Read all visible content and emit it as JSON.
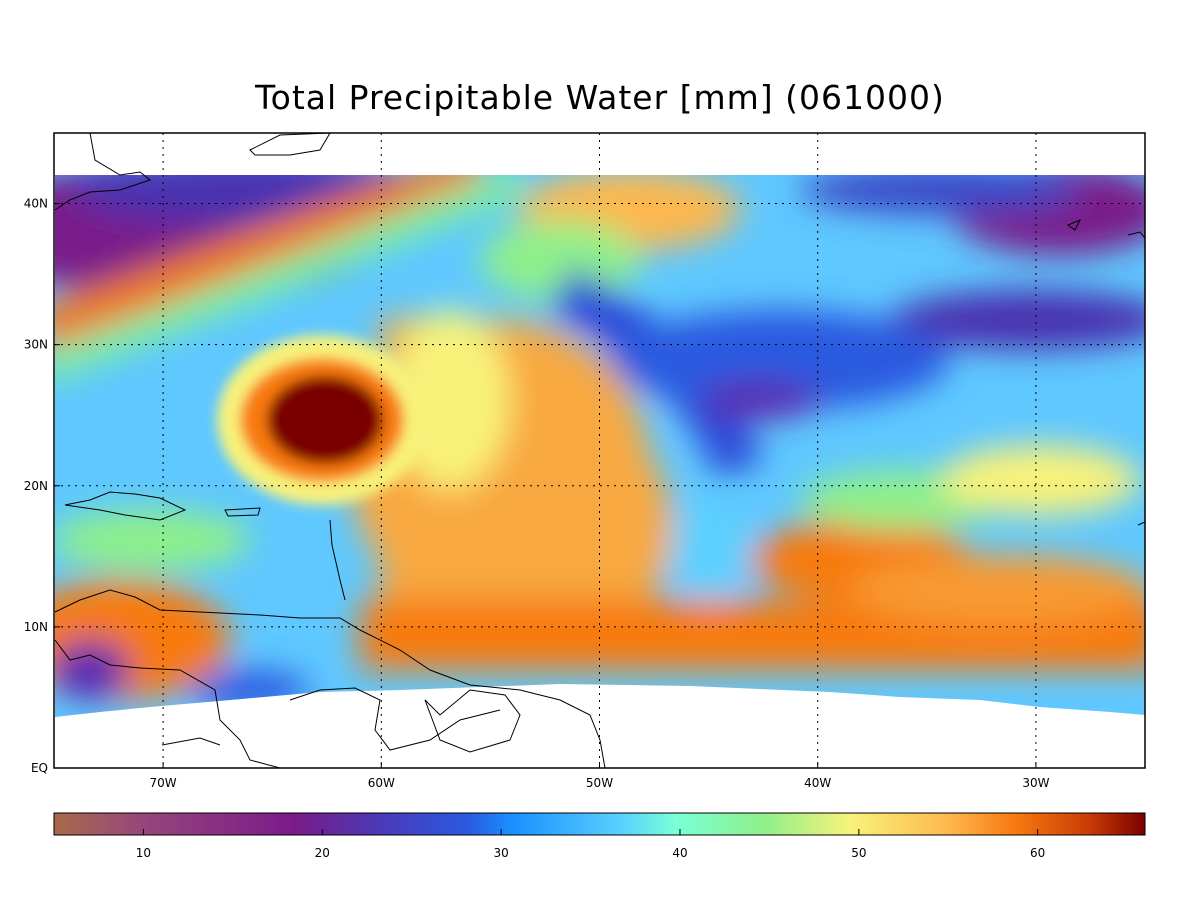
{
  "title": "Total Precipitable Water [mm]  (061000)",
  "map": {
    "lon_range": [
      -75,
      -25
    ],
    "lat_range": [
      0,
      45
    ],
    "lon_ticks": [
      {
        "value": -70,
        "label": "70W"
      },
      {
        "value": -60,
        "label": "60W"
      },
      {
        "value": -50,
        "label": "50W"
      },
      {
        "value": -40,
        "label": "40W"
      },
      {
        "value": -30,
        "label": "30W"
      }
    ],
    "lat_ticks": [
      {
        "value": 0,
        "label": "EQ"
      },
      {
        "value": 10,
        "label": "10N"
      },
      {
        "value": 20,
        "label": "20N"
      },
      {
        "value": 30,
        "label": "30N"
      },
      {
        "value": 40,
        "label": "40N"
      }
    ],
    "grid": "dotted",
    "data_coverage_lat": [
      4,
      42
    ],
    "features": [
      {
        "name": "hurricane-core",
        "lon": -62.5,
        "lat": 24.5,
        "tpw_mm": 64
      },
      {
        "name": "tropical-moisture-band",
        "lat": 9,
        "tpw_mm": 56
      },
      {
        "name": "dry-air-slot",
        "lon": -42,
        "lat": 27,
        "tpw_mm": 24
      }
    ]
  },
  "colorbar": {
    "range": [
      5,
      66
    ],
    "ticks": [
      {
        "value": 10,
        "label": "10"
      },
      {
        "value": 20,
        "label": "20"
      },
      {
        "value": 30,
        "label": "30"
      },
      {
        "value": 40,
        "label": "40"
      },
      {
        "value": 50,
        "label": "50"
      },
      {
        "value": 60,
        "label": "60"
      }
    ],
    "colors": [
      "#a86a4a",
      "#96477a",
      "#7a1a8a",
      "#5a2ab0",
      "#2a5ae0",
      "#1a90ff",
      "#5ad0ff",
      "#7affd6",
      "#8ef08a",
      "#f8f27a",
      "#fdb84e",
      "#f87a10",
      "#c83a05",
      "#7a0000"
    ]
  }
}
